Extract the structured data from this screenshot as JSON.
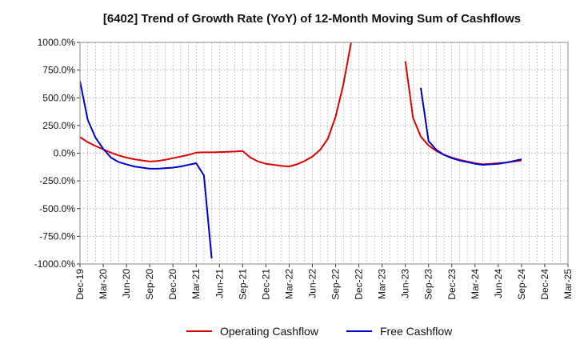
{
  "chart_data": {
    "type": "line",
    "title": "[6402]  Trend of Growth Rate (YoY) of 12-Month Moving Sum of Cashflows",
    "xlabel": "",
    "ylabel": "",
    "ylim": [
      -1000,
      1000
    ],
    "y_ticks": [
      1000,
      750,
      500,
      250,
      0,
      -250,
      -500,
      -750,
      -1000
    ],
    "y_tick_labels": [
      "1000.0%",
      "750.0%",
      "500.0%",
      "250.0%",
      "0.0%",
      "-250.0%",
      "-500.0%",
      "-750.0%",
      "-1000.0%"
    ],
    "x_range": [
      "Dec-19",
      "Mar-25"
    ],
    "x_ticks": [
      "Dec-19",
      "Mar-20",
      "Jun-20",
      "Sep-20",
      "Dec-20",
      "Mar-21",
      "Jun-21",
      "Sep-21",
      "Dec-21",
      "Mar-22",
      "Jun-22",
      "Sep-22",
      "Dec-22",
      "Mar-23",
      "Jun-23",
      "Sep-23",
      "Dec-23",
      "Mar-24",
      "Jun-24",
      "Sep-24",
      "Dec-24",
      "Mar-25"
    ],
    "grid": true,
    "legend_position": "bottom-center",
    "series": [
      {
        "name": "Operating Cashflow",
        "color": "#dd0000",
        "segments": [
          [
            [
              "Dec-19",
              145
            ],
            [
              "Jan-20",
              100
            ],
            [
              "Feb-20",
              65
            ],
            [
              "Mar-20",
              35
            ],
            [
              "Apr-20",
              5
            ],
            [
              "May-20",
              -20
            ],
            [
              "Jun-20",
              -40
            ],
            [
              "Jul-20",
              -55
            ],
            [
              "Aug-20",
              -65
            ],
            [
              "Sep-20",
              -75
            ],
            [
              "Oct-20",
              -70
            ],
            [
              "Nov-20",
              -60
            ],
            [
              "Dec-20",
              -45
            ],
            [
              "Jan-21",
              -30
            ],
            [
              "Feb-21",
              -15
            ],
            [
              "Mar-21",
              5
            ],
            [
              "Apr-21",
              8
            ],
            [
              "May-21",
              8
            ],
            [
              "Jun-21",
              10
            ],
            [
              "Jul-21",
              12
            ],
            [
              "Aug-21",
              15
            ],
            [
              "Sep-21",
              20
            ],
            [
              "Oct-21",
              -40
            ],
            [
              "Nov-21",
              -75
            ],
            [
              "Dec-21",
              -95
            ],
            [
              "Jan-22",
              -105
            ],
            [
              "Feb-22",
              -115
            ],
            [
              "Mar-22",
              -120
            ],
            [
              "Apr-22",
              -100
            ],
            [
              "May-22",
              -70
            ],
            [
              "Jun-22",
              -30
            ],
            [
              "Jul-22",
              30
            ],
            [
              "Aug-22",
              130
            ],
            [
              "Sep-22",
              330
            ],
            [
              "Oct-22",
              620
            ],
            [
              "Nov-22",
              1000
            ]
          ],
          [
            [
              "Jun-23",
              830
            ],
            [
              "Jul-23",
              320
            ],
            [
              "Aug-23",
              150
            ],
            [
              "Sep-23",
              70
            ],
            [
              "Oct-23",
              20
            ],
            [
              "Nov-23",
              -15
            ],
            [
              "Dec-23",
              -40
            ],
            [
              "Jan-24",
              -60
            ],
            [
              "Feb-24",
              -75
            ],
            [
              "Mar-24",
              -90
            ],
            [
              "Apr-24",
              -100
            ],
            [
              "May-24",
              -95
            ],
            [
              "Jun-24",
              -90
            ],
            [
              "Jul-24",
              -85
            ],
            [
              "Aug-24",
              -75
            ],
            [
              "Sep-24",
              -65
            ]
          ]
        ]
      },
      {
        "name": "Free Cashflow",
        "color": "#0000cc",
        "segments": [
          [
            [
              "Dec-19",
              650
            ],
            [
              "Jan-20",
              300
            ],
            [
              "Feb-20",
              140
            ],
            [
              "Mar-20",
              40
            ],
            [
              "Apr-20",
              -40
            ],
            [
              "May-20",
              -80
            ],
            [
              "Jun-20",
              -100
            ],
            [
              "Jul-20",
              -120
            ],
            [
              "Aug-20",
              -130
            ],
            [
              "Sep-20",
              -140
            ],
            [
              "Oct-20",
              -140
            ],
            [
              "Nov-20",
              -135
            ],
            [
              "Dec-20",
              -130
            ],
            [
              "Jan-21",
              -120
            ],
            [
              "Feb-21",
              -105
            ],
            [
              "Mar-21",
              -90
            ],
            [
              "Apr-21",
              -200
            ],
            [
              "May-21",
              -950
            ]
          ],
          [
            [
              "Aug-23",
              590
            ],
            [
              "Sep-23",
              110
            ],
            [
              "Oct-23",
              30
            ],
            [
              "Nov-23",
              -15
            ],
            [
              "Dec-23",
              -45
            ],
            [
              "Jan-24",
              -65
            ],
            [
              "Feb-24",
              -80
            ],
            [
              "Mar-24",
              -95
            ],
            [
              "Apr-24",
              -105
            ],
            [
              "May-24",
              -100
            ],
            [
              "Jun-24",
              -95
            ],
            [
              "Jul-24",
              -85
            ],
            [
              "Aug-24",
              -70
            ],
            [
              "Sep-24",
              -55
            ]
          ]
        ]
      }
    ]
  }
}
